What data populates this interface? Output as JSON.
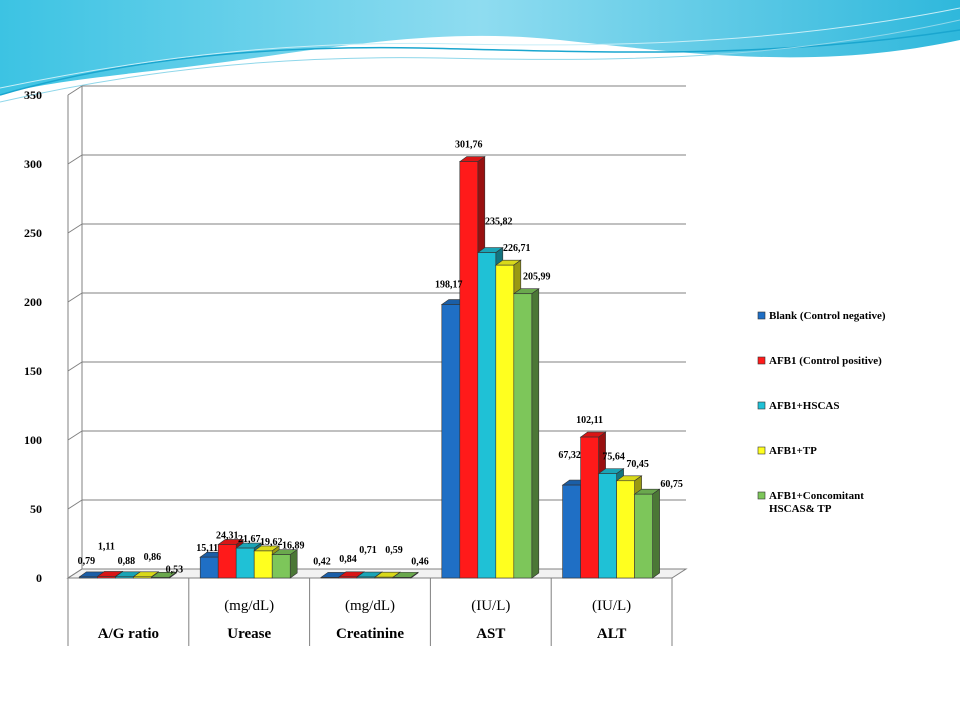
{
  "chart_data": {
    "type": "bar",
    "categories": [
      "A/G ratio",
      "Urease",
      "Creatinine",
      "AST",
      "ALT"
    ],
    "units": [
      "",
      "(mg/dL)",
      "(mg/dL)",
      "(IU/L)",
      "(IU/L)"
    ],
    "ylim": [
      0,
      350
    ],
    "yticks": [
      "0",
      "50",
      "100",
      "150",
      "200",
      "250",
      "300",
      "350"
    ],
    "grid": true,
    "legend_position": "right",
    "series": [
      {
        "name": "Blank (Control negative)",
        "color": "#1f6fc5",
        "values": [
          0.79,
          15.11,
          0.42,
          198.17,
          67.32
        ],
        "labels": [
          "0,79",
          "15,11",
          "0,42",
          "198,17",
          "67,32"
        ]
      },
      {
        "name": "AFB1 (Control positive)",
        "color": "#ff1a1a",
        "values": [
          1.11,
          24.31,
          0.84,
          301.76,
          102.11
        ],
        "labels": [
          "1,11",
          "24,31",
          "0,84",
          "301,76",
          "102,11"
        ]
      },
      {
        "name": "AFB1+HSCAS",
        "color": "#1fc1d6",
        "values": [
          0.88,
          21.67,
          0.71,
          235.82,
          75.64
        ],
        "labels": [
          "0,88",
          "21,67",
          "0,71",
          "235,82",
          "75,64"
        ]
      },
      {
        "name": "AFB1+TP",
        "color": "#ffff1f",
        "values": [
          0.86,
          19.62,
          0.59,
          226.71,
          70.45
        ],
        "labels": [
          "0,86",
          "19,62",
          "0,59",
          "226,71",
          "70,45"
        ]
      },
      {
        "name": "AFB1+Concomitant HSCAS& TP",
        "color": "#7dc65a",
        "values": [
          0.53,
          16.89,
          0.46,
          205.99,
          60.75
        ],
        "labels": [
          "0,53",
          "16,89",
          "0,46",
          "205,99",
          "60,75"
        ]
      }
    ]
  }
}
